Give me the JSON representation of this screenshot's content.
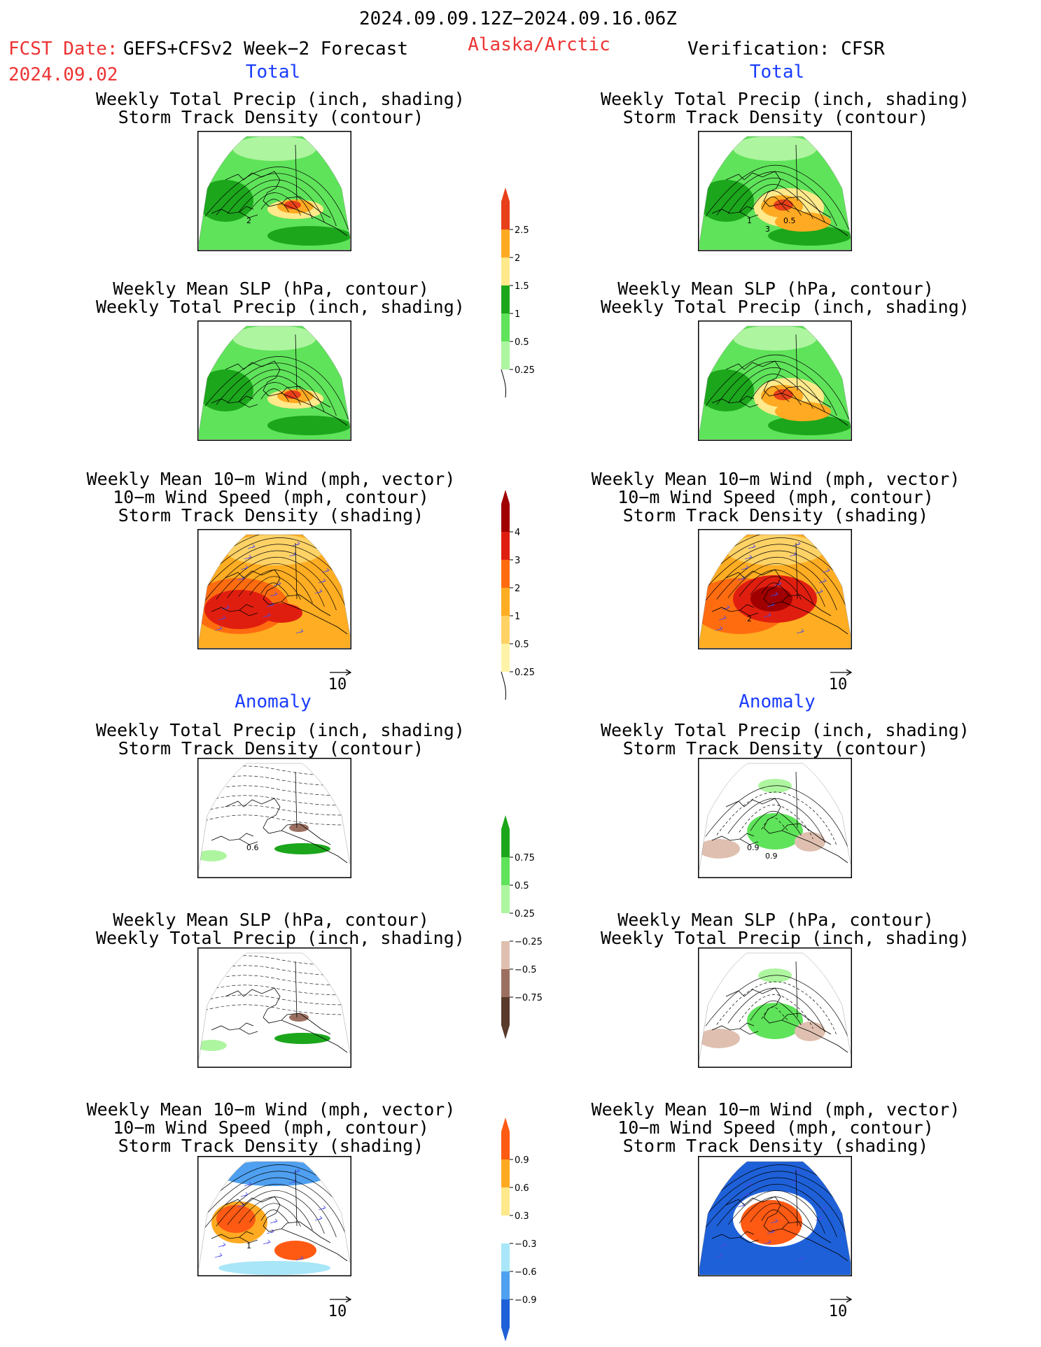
{
  "header": {
    "period": "2024.09.09.12Z−2024.09.16.06Z",
    "fcst_label": "FCST Date:",
    "fcst_model": "GEFS+CFSv2 Week−2 Forecast",
    "fcst_date": "2024.09.02",
    "region": "Alaska/Arctic",
    "verification": "Verification: CFSR"
  },
  "sections": {
    "total": "Total",
    "anomaly": "Anomaly"
  },
  "titles": {
    "precip_storm": [
      "Weekly Total Precip (inch, shading)",
      "Storm Track Density (contour)"
    ],
    "slp_precip": [
      "Weekly Mean SLP (hPa, contour)",
      "Weekly Total Precip (inch, shading)"
    ],
    "wind_storm": [
      "Weekly Mean 10−m Wind (mph, vector)",
      "10−m Wind Speed (mph, contour)",
      "Storm Track Density (shading)"
    ]
  },
  "vector_ref": "10",
  "colorbars": [
    {
      "id": "precip_total",
      "colors": [
        "#aef5a0",
        "#5fe35a",
        "#1ca61c",
        "#ffe98a",
        "#ffaa22",
        "#e8401a"
      ],
      "ticks": [
        "0.25",
        "0.5",
        "1",
        "1.5",
        "2",
        "2.5"
      ]
    },
    {
      "id": "storm_total",
      "colors": [
        "#fff3a8",
        "#ffd266",
        "#ffad22",
        "#ff6c10",
        "#e01e10",
        "#a00000"
      ],
      "ticks": [
        "0.25",
        "0.5",
        "1",
        "2",
        "3",
        "4"
      ]
    },
    {
      "id": "precip_anom",
      "colors": [
        "#5a3a2a",
        "#9b7060",
        "#dfc0b0",
        "#ffffff",
        "#aef5a0",
        "#5fe35a",
        "#1ca61c"
      ],
      "ticks": [
        "−0.75",
        "−0.5",
        "−0.25",
        "0.25",
        "0.5",
        "0.75"
      ]
    },
    {
      "id": "storm_anom",
      "colors": [
        "#1e60d8",
        "#4fa0f0",
        "#a8e6f8",
        "#ffffff",
        "#ffe98a",
        "#ffaa22",
        "#ff5a14"
      ],
      "ticks": [
        "−0.9",
        "−0.6",
        "−0.3",
        "0.3",
        "0.6",
        "0.9"
      ]
    }
  ],
  "panel_labels": {
    "fcst_total_storm": [
      "2"
    ],
    "obs_total_storm": [
      "1",
      "3",
      "0.5"
    ],
    "obs_total_wind": [
      "2"
    ],
    "fcst_anom_storm": [
      "0.6"
    ],
    "obs_anom_storm": [
      "0.9",
      "0.9"
    ],
    "fcst_anom_wind": [
      "1"
    ]
  }
}
